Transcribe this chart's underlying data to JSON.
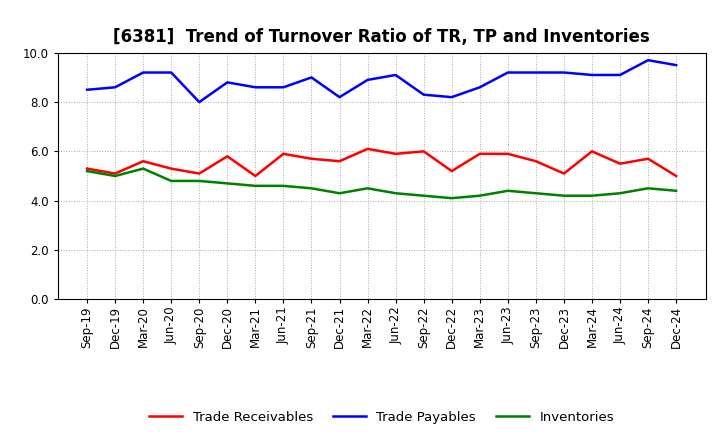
{
  "title": "[6381]  Trend of Turnover Ratio of TR, TP and Inventories",
  "x_labels": [
    "Sep-19",
    "Dec-19",
    "Mar-20",
    "Jun-20",
    "Sep-20",
    "Dec-20",
    "Mar-21",
    "Jun-21",
    "Sep-21",
    "Dec-21",
    "Mar-22",
    "Jun-22",
    "Sep-22",
    "Dec-22",
    "Mar-23",
    "Jun-23",
    "Sep-23",
    "Dec-23",
    "Mar-24",
    "Jun-24",
    "Sep-24",
    "Dec-24"
  ],
  "trade_receivables": [
    5.3,
    5.1,
    5.6,
    5.3,
    5.1,
    5.8,
    5.0,
    5.9,
    5.7,
    5.6,
    6.1,
    5.9,
    6.0,
    5.2,
    5.9,
    5.9,
    5.6,
    5.1,
    6.0,
    5.5,
    5.7,
    5.0
  ],
  "trade_payables": [
    8.5,
    8.6,
    9.2,
    9.2,
    8.0,
    8.8,
    8.6,
    8.6,
    9.0,
    8.2,
    8.9,
    9.1,
    8.3,
    8.2,
    8.6,
    9.2,
    9.2,
    9.2,
    9.1,
    9.1,
    9.7,
    9.5
  ],
  "inventories": [
    5.2,
    5.0,
    5.3,
    4.8,
    4.8,
    4.7,
    4.6,
    4.6,
    4.5,
    4.3,
    4.5,
    4.3,
    4.2,
    4.1,
    4.2,
    4.4,
    4.3,
    4.2,
    4.2,
    4.3,
    4.5,
    4.4
  ],
  "tr_color": "#ff0000",
  "tp_color": "#0000ff",
  "inv_color": "#008000",
  "ylim": [
    0.0,
    10.0
  ],
  "yticks": [
    0.0,
    2.0,
    4.0,
    6.0,
    8.0,
    10.0
  ],
  "legend_labels": [
    "Trade Receivables",
    "Trade Payables",
    "Inventories"
  ],
  "background_color": "#ffffff",
  "grid_color": "#aaaaaa",
  "line_width": 1.8,
  "title_fontsize": 12,
  "tick_fontsize": 8.5,
  "legend_fontsize": 9.5
}
